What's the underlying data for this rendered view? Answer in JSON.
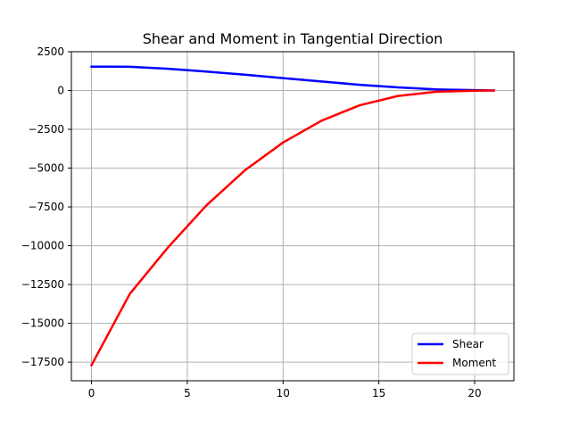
{
  "chart_data": {
    "type": "line",
    "title": "Shear and Moment in Tangential Direction",
    "xlabel": "",
    "ylabel": "",
    "xlim": [
      -1.05,
      22.05
    ],
    "ylim": [
      -18700,
      2500
    ],
    "xticks": [
      0,
      5,
      10,
      15,
      20
    ],
    "yticks": [
      2500,
      0,
      -2500,
      -5000,
      -7500,
      -10000,
      -12500,
      -15000,
      -17500
    ],
    "xtick_labels": [
      "0",
      "5",
      "10",
      "15",
      "20"
    ],
    "ytick_labels": [
      "2500",
      "0",
      "−2500",
      "−5000",
      "−7500",
      "−10000",
      "−12500",
      "−15000",
      "−17500"
    ],
    "grid": true,
    "legend_position": "lower-right",
    "series": [
      {
        "name": "Shear",
        "color": "#0000ff",
        "x": [
          0,
          2,
          4,
          6,
          8,
          10,
          12,
          14,
          16,
          18,
          20,
          21
        ],
        "y": [
          1540,
          1530,
          1400,
          1220,
          1020,
          800,
          580,
          370,
          200,
          70,
          20,
          0
        ]
      },
      {
        "name": "Moment",
        "color": "#ff0000",
        "x": [
          0,
          2,
          4,
          6,
          8,
          10,
          12,
          14,
          16,
          18,
          20,
          21
        ],
        "y": [
          -17700,
          -13100,
          -10100,
          -7400,
          -5150,
          -3350,
          -1950,
          -950,
          -350,
          -80,
          -10,
          0
        ]
      }
    ]
  }
}
